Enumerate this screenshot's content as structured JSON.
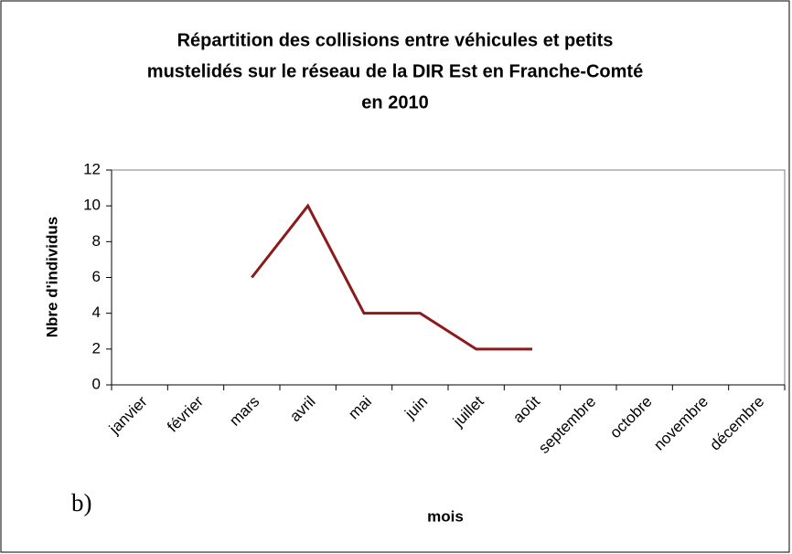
{
  "chart_data": {
    "type": "line",
    "title": [
      "Répartition des collisions entre véhicules et petits",
      "mustelidés sur le réseau de la DIR Est en Franche-Comté",
      "en 2010"
    ],
    "x_label": "mois",
    "y_label": "Nbre d'individus",
    "annotation": "b)",
    "categories": [
      "janvier",
      "février",
      "mars",
      "avril",
      "mai",
      "juin",
      "juillet",
      "août",
      "septembre",
      "octobre",
      "novembre",
      "décembre"
    ],
    "series": [
      {
        "name": "Nbre d'individus",
        "color": "#8b1a1a",
        "values": [
          null,
          null,
          6,
          10,
          4,
          4,
          2,
          2,
          null,
          null,
          null,
          null
        ]
      }
    ],
    "ylim": [
      0,
      12
    ],
    "yticks": [
      0,
      2,
      4,
      6,
      8,
      10,
      12
    ],
    "grid": false,
    "legend": false
  }
}
